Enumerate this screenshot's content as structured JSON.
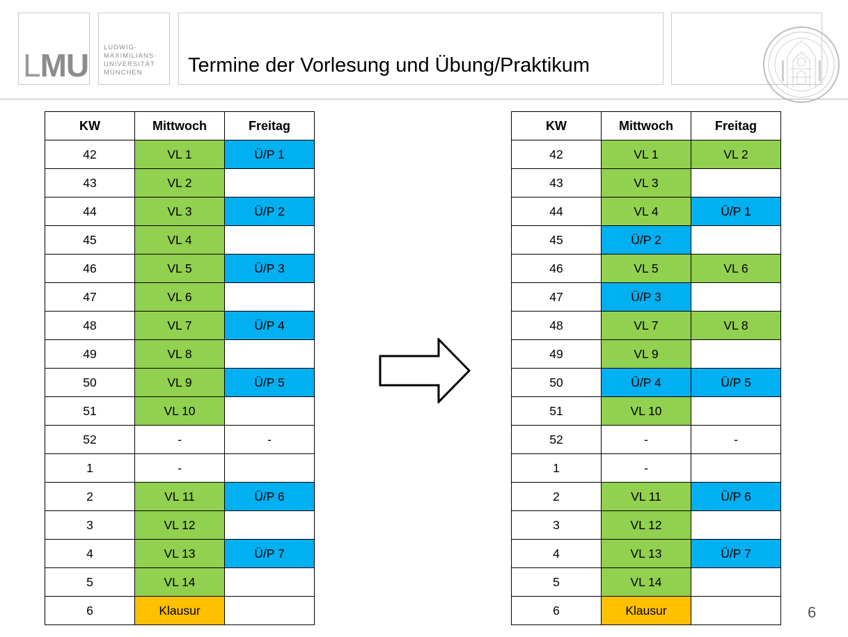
{
  "header": {
    "logo_text_thin": "L",
    "logo_text_bold": "MU",
    "university_name": "LUDWIG-\nMAXIMILIANS-\nUNIVERSITÄT\nMÜNCHEN",
    "title": "Termine der Vorlesung und Übung/Praktikum",
    "seal_icon": "university-seal-icon"
  },
  "colors": {
    "lecture": "#92d050",
    "exercise": "#00b0f0",
    "exam": "#ffc000"
  },
  "columns": [
    "KW",
    "Mittwoch",
    "Freitag"
  ],
  "table_left": [
    {
      "kw": "42",
      "wed": "VL 1",
      "wed_type": "vl",
      "fri": "Ü/P 1",
      "fri_type": "up"
    },
    {
      "kw": "43",
      "wed": "VL 2",
      "wed_type": "vl",
      "fri": "",
      "fri_type": "none"
    },
    {
      "kw": "44",
      "wed": "VL 3",
      "wed_type": "vl",
      "fri": "Ü/P 2",
      "fri_type": "up"
    },
    {
      "kw": "45",
      "wed": "VL 4",
      "wed_type": "vl",
      "fri": "",
      "fri_type": "none"
    },
    {
      "kw": "46",
      "wed": "VL 5",
      "wed_type": "vl",
      "fri": "Ü/P 3",
      "fri_type": "up"
    },
    {
      "kw": "47",
      "wed": "VL 6",
      "wed_type": "vl",
      "fri": "",
      "fri_type": "none"
    },
    {
      "kw": "48",
      "wed": "VL 7",
      "wed_type": "vl",
      "fri": "Ü/P 4",
      "fri_type": "up"
    },
    {
      "kw": "49",
      "wed": "VL 8",
      "wed_type": "vl",
      "fri": "",
      "fri_type": "none"
    },
    {
      "kw": "50",
      "wed": "VL 9",
      "wed_type": "vl",
      "fri": "Ü/P 5",
      "fri_type": "up"
    },
    {
      "kw": "51",
      "wed": "VL 10",
      "wed_type": "vl",
      "fri": "",
      "fri_type": "none"
    },
    {
      "kw": "52",
      "wed": "-",
      "wed_type": "none",
      "fri": "-",
      "fri_type": "none"
    },
    {
      "kw": "1",
      "wed": "-",
      "wed_type": "none",
      "fri": "",
      "fri_type": "none"
    },
    {
      "kw": "2",
      "wed": "VL 11",
      "wed_type": "vl",
      "fri": "Ü/P 6",
      "fri_type": "up"
    },
    {
      "kw": "3",
      "wed": "VL 12",
      "wed_type": "vl",
      "fri": "",
      "fri_type": "none"
    },
    {
      "kw": "4",
      "wed": "VL 13",
      "wed_type": "vl",
      "fri": "Ü/P 7",
      "fri_type": "up"
    },
    {
      "kw": "5",
      "wed": "VL 14",
      "wed_type": "vl",
      "fri": "",
      "fri_type": "none"
    },
    {
      "kw": "6",
      "wed": "Klausur",
      "wed_type": "kl",
      "fri": "",
      "fri_type": "none"
    }
  ],
  "table_right": [
    {
      "kw": "42",
      "wed": "VL 1",
      "wed_type": "vl",
      "fri": "VL 2",
      "fri_type": "vl"
    },
    {
      "kw": "43",
      "wed": "VL 3",
      "wed_type": "vl",
      "fri": "",
      "fri_type": "none"
    },
    {
      "kw": "44",
      "wed": "VL 4",
      "wed_type": "vl",
      "fri": "Ü/P 1",
      "fri_type": "up"
    },
    {
      "kw": "45",
      "wed": "Ü/P 2",
      "wed_type": "up",
      "fri": "",
      "fri_type": "none"
    },
    {
      "kw": "46",
      "wed": "VL 5",
      "wed_type": "vl",
      "fri": "VL 6",
      "fri_type": "vl"
    },
    {
      "kw": "47",
      "wed": "Ü/P 3",
      "wed_type": "up",
      "fri": "",
      "fri_type": "none"
    },
    {
      "kw": "48",
      "wed": "VL 7",
      "wed_type": "vl",
      "fri": "VL 8",
      "fri_type": "vl"
    },
    {
      "kw": "49",
      "wed": "VL 9",
      "wed_type": "vl",
      "fri": "",
      "fri_type": "none"
    },
    {
      "kw": "50",
      "wed": "Ü/P 4",
      "wed_type": "up",
      "fri": "Ü/P 5",
      "fri_type": "up"
    },
    {
      "kw": "51",
      "wed": "VL 10",
      "wed_type": "vl",
      "fri": "",
      "fri_type": "none"
    },
    {
      "kw": "52",
      "wed": "-",
      "wed_type": "none",
      "fri": "-",
      "fri_type": "none"
    },
    {
      "kw": "1",
      "wed": "-",
      "wed_type": "none",
      "fri": "",
      "fri_type": "none"
    },
    {
      "kw": "2",
      "wed": "VL 11",
      "wed_type": "vl",
      "fri": "Ü/P 6",
      "fri_type": "up"
    },
    {
      "kw": "3",
      "wed": "VL 12",
      "wed_type": "vl",
      "fri": "",
      "fri_type": "none"
    },
    {
      "kw": "4",
      "wed": "VL 13",
      "wed_type": "vl",
      "fri": "Ü/P 7",
      "fri_type": "up"
    },
    {
      "kw": "5",
      "wed": "VL 14",
      "wed_type": "vl",
      "fri": "",
      "fri_type": "none"
    },
    {
      "kw": "6",
      "wed": "Klausur",
      "wed_type": "kl",
      "fri": "",
      "fri_type": "none"
    }
  ],
  "arrow_icon": "right-arrow-icon",
  "page_number": "6"
}
